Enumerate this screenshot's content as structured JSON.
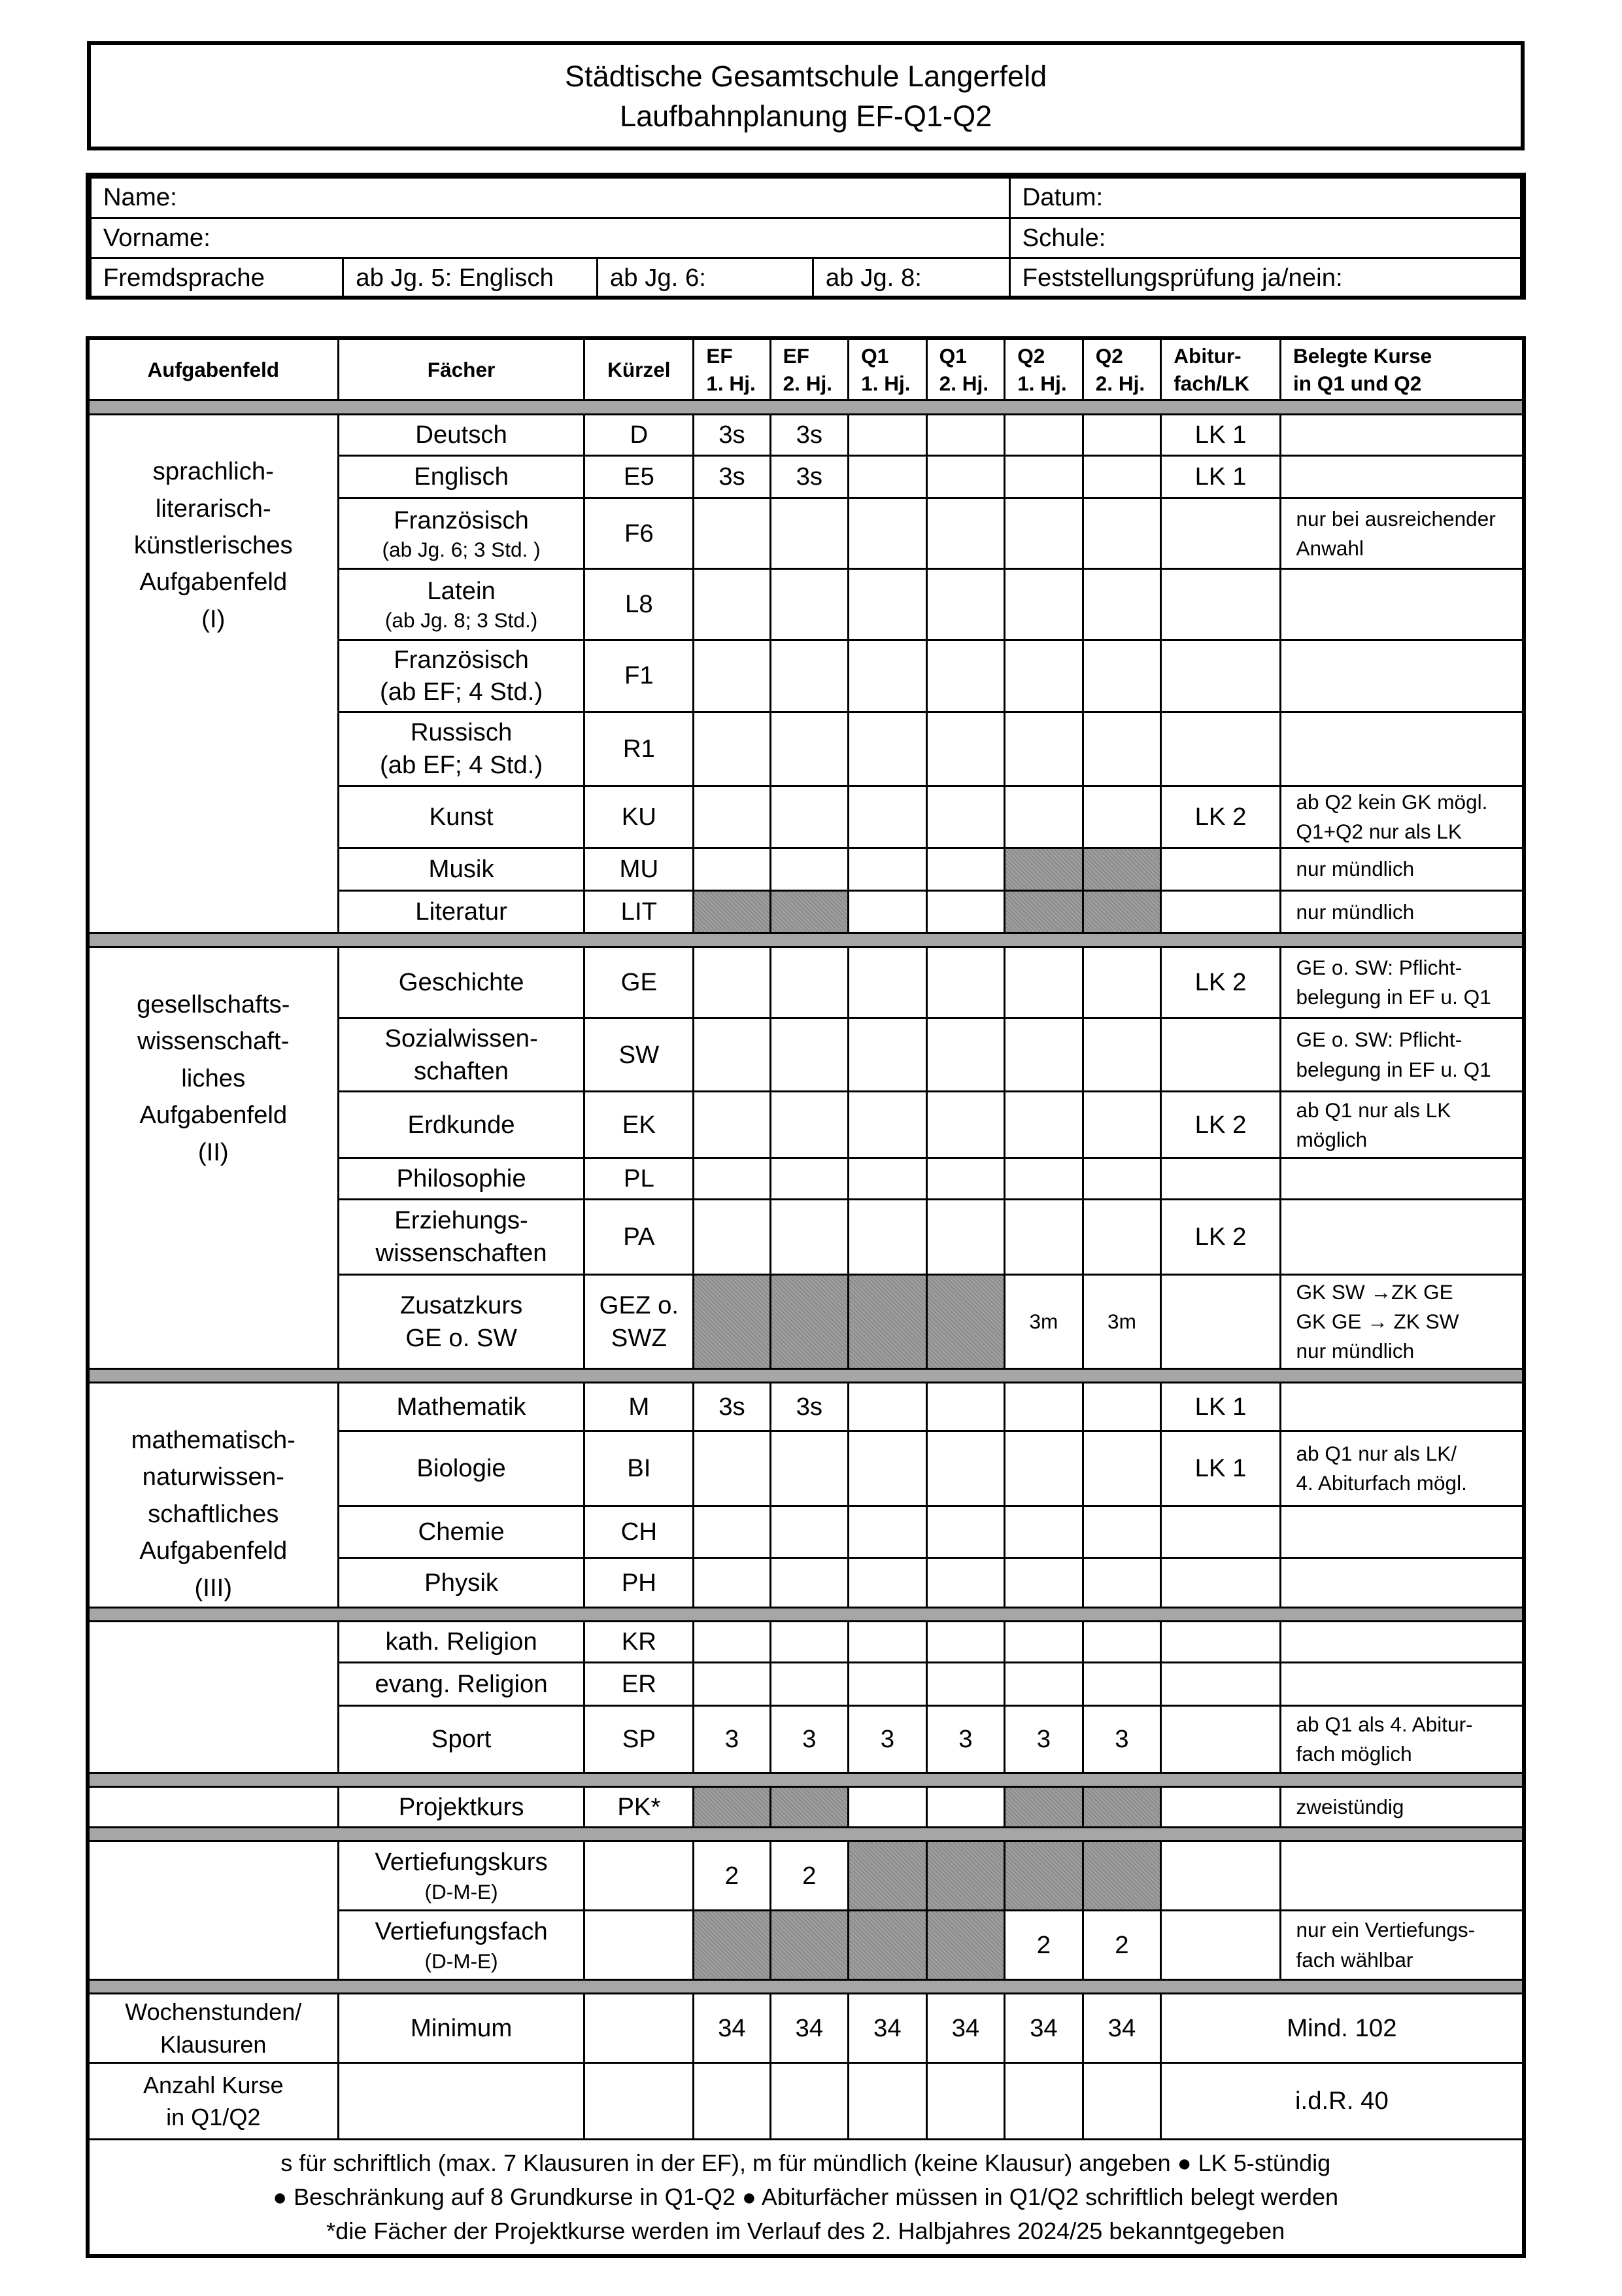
{
  "header": {
    "school": "Städtische Gesamtschule Langerfeld",
    "title": "Laufbahnplanung EF-Q1-Q2"
  },
  "info": {
    "name": "Name:",
    "datum": "Datum:",
    "vorname": "Vorname:",
    "schule": "Schule:",
    "fremdsprache": "Fremdsprache",
    "jg5": "ab Jg. 5: Englisch",
    "jg6": "ab Jg. 6:",
    "jg8": "ab Jg. 8:",
    "feststellung": "Feststellungsprüfung ja/nein:"
  },
  "columns": [
    "Aufgabenfeld",
    "Fächer",
    "Kürzel",
    "EF\n1. Hj.",
    "EF\n2. Hj.",
    "Q1\n1. Hj.",
    "Q1\n2. Hj.",
    "Q2\n1. Hj.",
    "Q2\n2. Hj.",
    "Abitur-\nfach/LK",
    "Belegte Kurse\nin Q1 und Q2"
  ],
  "shade_color": "#a0a0a0",
  "groups": [
    {
      "field": "sprachlich-\nliterarisch-\nkünstlerisches\nAufgabenfeld\n(I)",
      "rows": [
        {
          "subject": "Deutsch",
          "code": "D",
          "cells": [
            "3s",
            "3s",
            "",
            "",
            "",
            ""
          ],
          "abitur": "LK 1",
          "note": ""
        },
        {
          "subject": "Englisch",
          "code": "E5",
          "cells": [
            "3s",
            "3s",
            "",
            "",
            "",
            ""
          ],
          "abitur": "LK 1",
          "note": ""
        },
        {
          "subject": "Französisch",
          "sub": "(ab Jg. 6; 3 Std. )",
          "code": "F6",
          "cells": [
            "",
            "",
            "",
            "",
            "",
            ""
          ],
          "abitur": "",
          "note": "nur bei ausreichender\nAnwahl"
        },
        {
          "subject": "Latein",
          "sub": "(ab Jg. 8; 3 Std.)",
          "code": "L8",
          "cells": [
            "",
            "",
            "",
            "",
            "",
            ""
          ],
          "abitur": "",
          "note": ""
        },
        {
          "subject": "Französisch",
          "sub2": "(ab EF; 4 Std.)",
          "code": "F1",
          "cells": [
            "",
            "",
            "",
            "",
            "",
            ""
          ],
          "abitur": "",
          "note": ""
        },
        {
          "subject": "Russisch",
          "sub2": "(ab EF; 4 Std.)",
          "code": "R1",
          "cells": [
            "",
            "",
            "",
            "",
            "",
            ""
          ],
          "abitur": "",
          "note": ""
        },
        {
          "subject": "Kunst",
          "code": "KU",
          "cells": [
            "",
            "",
            "",
            "",
            "",
            ""
          ],
          "abitur": "LK 2",
          "note": "ab Q2 kein GK mögl.\nQ1+Q2 nur als LK"
        },
        {
          "subject": "Musik",
          "code": "MU",
          "cells": [
            "",
            "",
            "",
            "",
            "",
            ""
          ],
          "shaded": [
            4,
            5
          ],
          "abitur": "",
          "note": "nur mündlich"
        },
        {
          "subject": "Literatur",
          "code": "LIT",
          "cells": [
            "",
            "",
            "",
            "",
            "",
            ""
          ],
          "shaded": [
            0,
            1,
            4,
            5
          ],
          "abitur": "",
          "note": "nur mündlich"
        }
      ]
    },
    {
      "field": "gesellschafts-\nwissenschaft-\nliches\nAufgabenfeld\n(II)",
      "rows": [
        {
          "subject": "Geschichte",
          "code": "GE",
          "cells": [
            "",
            "",
            "",
            "",
            "",
            ""
          ],
          "abitur": "LK 2",
          "note": "GE o. SW: Pflicht-\nbelegung in EF u. Q1"
        },
        {
          "subject": "Sozialwissen-\nschaften",
          "code": "SW",
          "cells": [
            "",
            "",
            "",
            "",
            "",
            ""
          ],
          "abitur": "",
          "note": "GE o. SW: Pflicht-\nbelegung in EF u. Q1"
        },
        {
          "subject": "Erdkunde",
          "code": "EK",
          "cells": [
            "",
            "",
            "",
            "",
            "",
            ""
          ],
          "abitur": "LK 2",
          "note": "ab Q1 nur als LK\nmöglich"
        },
        {
          "subject": "Philosophie",
          "code": "PL",
          "cells": [
            "",
            "",
            "",
            "",
            "",
            ""
          ],
          "abitur": "",
          "note": ""
        },
        {
          "subject": "Erziehungs-\nwissenschaften",
          "code": "PA",
          "cells": [
            "",
            "",
            "",
            "",
            "",
            ""
          ],
          "abitur": "LK 2",
          "note": ""
        },
        {
          "subject": "Zusatzkurs\nGE o. SW",
          "code": "GEZ o.\nSWZ",
          "cells": [
            "",
            "",
            "",
            "",
            "3m",
            "3m"
          ],
          "small": true,
          "shaded": [
            0,
            1,
            2,
            3
          ],
          "abitur": "",
          "note": "GK SW →ZK GE\nGK GE → ZK SW\nnur mündlich"
        }
      ]
    },
    {
      "field": "mathematisch-\nnaturwissen-\nschaftliches\nAufgabenfeld\n(III)",
      "rows": [
        {
          "subject": "Mathematik",
          "code": "M",
          "cells": [
            "3s",
            "3s",
            "",
            "",
            "",
            ""
          ],
          "abitur": "LK 1",
          "note": ""
        },
        {
          "subject": "Biologie",
          "code": "BI",
          "cells": [
            "",
            "",
            "",
            "",
            "",
            ""
          ],
          "abitur": "LK 1",
          "note": "ab Q1 nur als LK/\n4. Abiturfach mögl."
        },
        {
          "subject": "Chemie",
          "code": "CH",
          "cells": [
            "",
            "",
            "",
            "",
            "",
            ""
          ],
          "abitur": "",
          "note": ""
        },
        {
          "subject": "Physik",
          "code": "PH",
          "cells": [
            "",
            "",
            "",
            "",
            "",
            ""
          ],
          "abitur": "",
          "note": ""
        }
      ]
    },
    {
      "field": "",
      "rows": [
        {
          "subject": "kath. Religion",
          "code": "KR",
          "cells": [
            "",
            "",
            "",
            "",
            "",
            ""
          ],
          "abitur": "",
          "note": ""
        },
        {
          "subject": "evang. Religion",
          "code": "ER",
          "cells": [
            "",
            "",
            "",
            "",
            "",
            ""
          ],
          "abitur": "",
          "note": ""
        },
        {
          "subject": "Sport",
          "code": "SP",
          "cells": [
            "3",
            "3",
            "3",
            "3",
            "3",
            "3"
          ],
          "abitur": "",
          "note": "ab Q1 als 4. Abitur-\nfach möglich"
        }
      ]
    },
    {
      "field": "",
      "rows": [
        {
          "subject": "Projektkurs",
          "code": "PK*",
          "cells": [
            "",
            "",
            "",
            "",
            "",
            ""
          ],
          "shaded": [
            0,
            1,
            4,
            5
          ],
          "abitur": "",
          "note": "zweistündig"
        }
      ]
    },
    {
      "field": "",
      "rows": [
        {
          "subject": "Vertiefungskurs",
          "sub": "(D-M-E)",
          "code": "",
          "cells": [
            "2",
            "2",
            "",
            "",
            "",
            ""
          ],
          "shaded": [
            2,
            3,
            4,
            5
          ],
          "abitur": "",
          "note": ""
        },
        {
          "subject": "Vertiefungsfach",
          "sub": "(D-M-E)",
          "code": "",
          "cells": [
            "",
            "",
            "",
            "",
            "2",
            "2"
          ],
          "shaded": [
            0,
            1,
            2,
            3
          ],
          "abitur": "",
          "note": "nur ein Vertiefungs-\nfach wählbar"
        }
      ]
    }
  ],
  "summary": [
    {
      "label": "Wochenstunden/\nKlausuren",
      "subject": "Minimum",
      "cells": [
        "34",
        "34",
        "34",
        "34",
        "34",
        "34"
      ],
      "total": "Mind. 102"
    },
    {
      "label": "Anzahl Kurse\nin Q1/Q2",
      "subject": "",
      "cells": [
        "",
        "",
        "",
        "",
        "",
        ""
      ],
      "total": "i.d.R. 40"
    }
  ],
  "footer": [
    "s für schriftlich (max. 7 Klausuren in der EF), m für mündlich (keine Klausur) angeben ● LK 5-stündig",
    "● Beschränkung auf 8 Grundkurse in Q1-Q2 ● Abiturfächer müssen in Q1/Q2 schriftlich belegt werden",
    "*die Fächer der Projektkurse werden im Verlauf des 2. Halbjahres 2024/25 bekanntgegeben"
  ]
}
